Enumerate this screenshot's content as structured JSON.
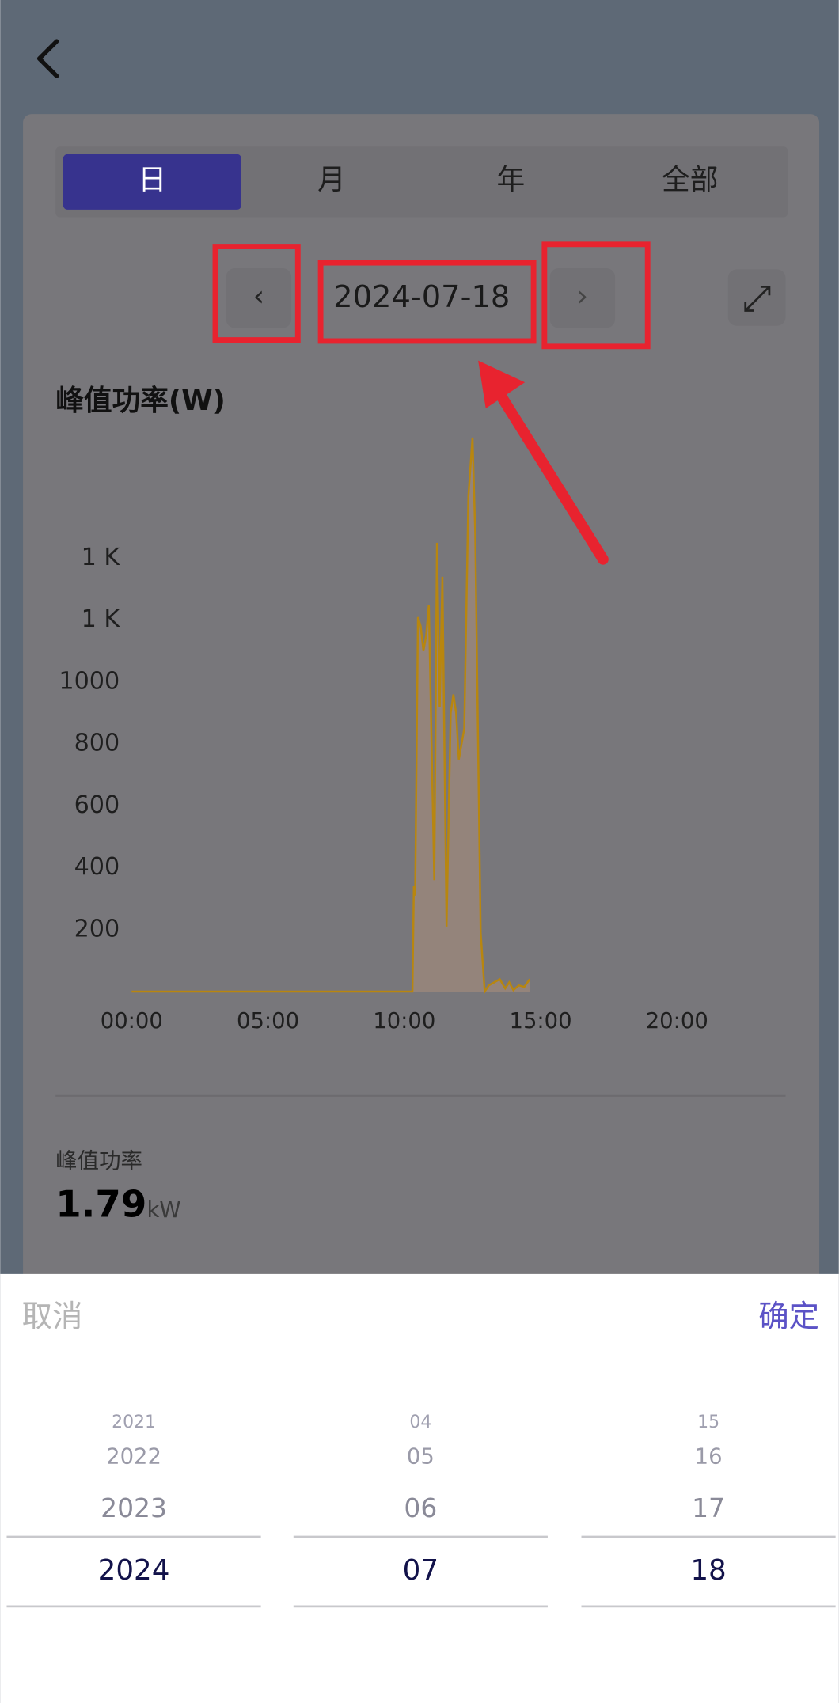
{
  "tabs": [
    "日",
    "月",
    "年",
    "全部"
  ],
  "date": "2024-07-18",
  "chart_data": {
    "type": "line",
    "title": "峰值功率(W)",
    "color": "#b8860f",
    "x": [
      0,
      10.3,
      10.35,
      10.4,
      10.5,
      10.6,
      10.7,
      10.8,
      10.9,
      11.0,
      11.1,
      11.2,
      11.3,
      11.4,
      11.55,
      11.7,
      11.8,
      11.9,
      12.0,
      12.2,
      12.35,
      12.5,
      12.6,
      12.8,
      12.95,
      13.1,
      13.3,
      13.5,
      13.7,
      13.85,
      14.0,
      14.2,
      14.4,
      14.6
    ],
    "values": [
      0,
      0,
      340,
      310,
      1210,
      1180,
      1100,
      1150,
      1250,
      800,
      360,
      1450,
      920,
      1340,
      210,
      900,
      960,
      900,
      750,
      850,
      1600,
      1790,
      1480,
      190,
      0,
      20,
      30,
      40,
      10,
      30,
      5,
      20,
      15,
      40
    ],
    "xlim": [
      0,
      24
    ],
    "ylim": [
      0,
      1800
    ],
    "xticks": [
      {
        "value": 0,
        "label": "00:00"
      },
      {
        "value": 5,
        "label": "05:00"
      },
      {
        "value": 10,
        "label": "10:00"
      },
      {
        "value": 15,
        "label": "15:00"
      },
      {
        "value": 20,
        "label": "20:00"
      }
    ],
    "yticks": [
      200,
      400,
      600,
      800,
      1000,
      {
        "value": 1200,
        "label": "1 K"
      },
      {
        "value": 1400,
        "label": "1 K"
      }
    ]
  },
  "stats": {
    "label": "峰值功率",
    "value": "1.79",
    "unit": "kW"
  },
  "picker": {
    "cancel": "取消",
    "confirm": "确定",
    "columns": [
      [
        "2021",
        "2022",
        "2023",
        "2024"
      ],
      [
        "04",
        "05",
        "06",
        "07"
      ],
      [
        "15",
        "16",
        "17",
        "18"
      ]
    ]
  }
}
